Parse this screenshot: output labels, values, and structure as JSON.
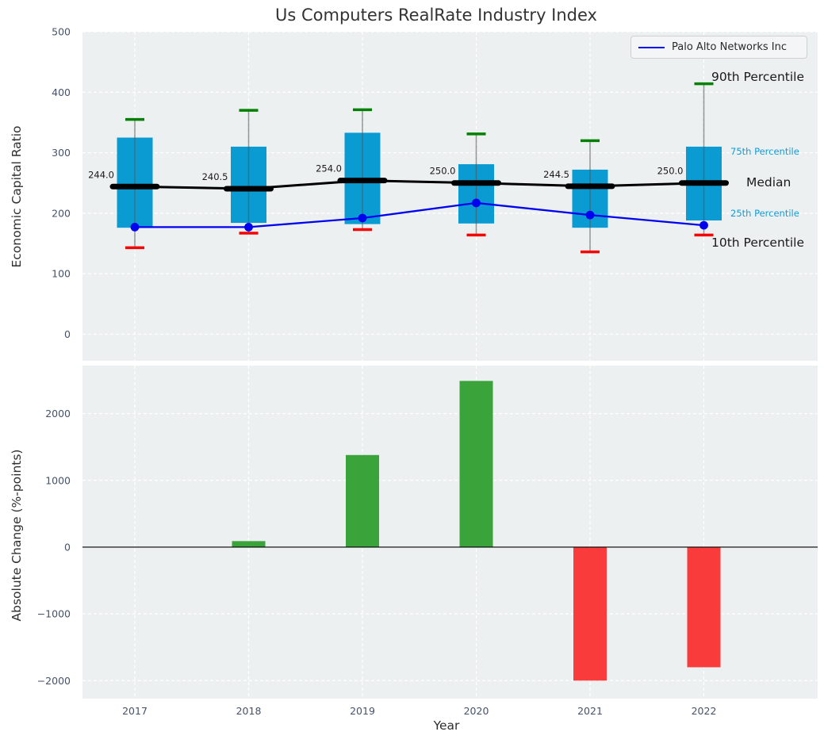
{
  "chart_data": [
    {
      "type": "line",
      "subtype": "percentile-band-boxplot",
      "title": "Us Computers RealRate Industry Index",
      "ylabel": "Economic Capital Ratio",
      "x": [
        2017,
        2018,
        2019,
        2020,
        2021,
        2022
      ],
      "ylim": [
        -44,
        500
      ],
      "yticks": [
        500,
        400,
        300,
        200,
        100,
        0
      ],
      "ytick_labels": [
        "500",
        "400",
        "300",
        "200",
        "100",
        "0"
      ],
      "grid": true,
      "series": [
        {
          "name": "90th Percentile",
          "values": [
            355,
            370,
            371,
            331,
            320,
            414
          ]
        },
        {
          "name": "75th Percentile",
          "values": [
            325,
            310,
            333,
            281,
            272,
            310
          ]
        },
        {
          "name": "Median",
          "values": [
            244.0,
            240.5,
            254.0,
            250.0,
            244.5,
            250.0
          ]
        },
        {
          "name": "25th Percentile",
          "values": [
            176,
            184,
            182,
            183,
            176,
            188
          ]
        },
        {
          "name": "10th Percentile",
          "values": [
            143,
            167,
            173,
            164,
            136,
            164
          ]
        },
        {
          "name": "Palo Alto Networks Inc",
          "values": [
            177,
            177,
            192,
            217,
            197,
            180
          ]
        }
      ],
      "median_labels": [
        "244.0",
        "240.5",
        "254.0",
        "250.0",
        "244.5",
        "250.0"
      ],
      "legend": {
        "label": "Palo Alto Networks Inc",
        "position": "upper right"
      },
      "annotations": {
        "p90": "90th Percentile",
        "p75": "75th Percentile",
        "median": "Median",
        "p25": "25th Percentile",
        "p10": "10th Percentile"
      }
    },
    {
      "type": "bar",
      "categories": [
        "2017",
        "2018",
        "2019",
        "2020",
        "2021",
        "2022"
      ],
      "values": [
        0,
        90,
        1380,
        2490,
        -2000,
        -1800
      ],
      "xlabel": "Year",
      "ylabel": "Absolute Change (%-points)",
      "ylim": [
        -2270,
        2720
      ],
      "yticks": [
        2000,
        1000,
        0,
        -1000,
        -2000
      ],
      "ytick_labels": [
        "2000",
        "1000",
        "0",
        "−1000",
        "−2000"
      ],
      "grid": true
    }
  ],
  "colors": {
    "box_fill": "#0a9bd2",
    "whisker": "#555555",
    "cap_90th": "#008000",
    "cap_10th": "#f50000",
    "median": "#000000",
    "palo_line": "#0000f0",
    "bar_positive": "#3aa43a",
    "bar_negative": "#f93b3b",
    "percentile_label": "#109bd8",
    "annotation_dark": "#1a1a1a",
    "axes_background": "#ecf0f1",
    "grid": "#ffffff",
    "tick_label": "#44536a",
    "title": "#333333"
  }
}
